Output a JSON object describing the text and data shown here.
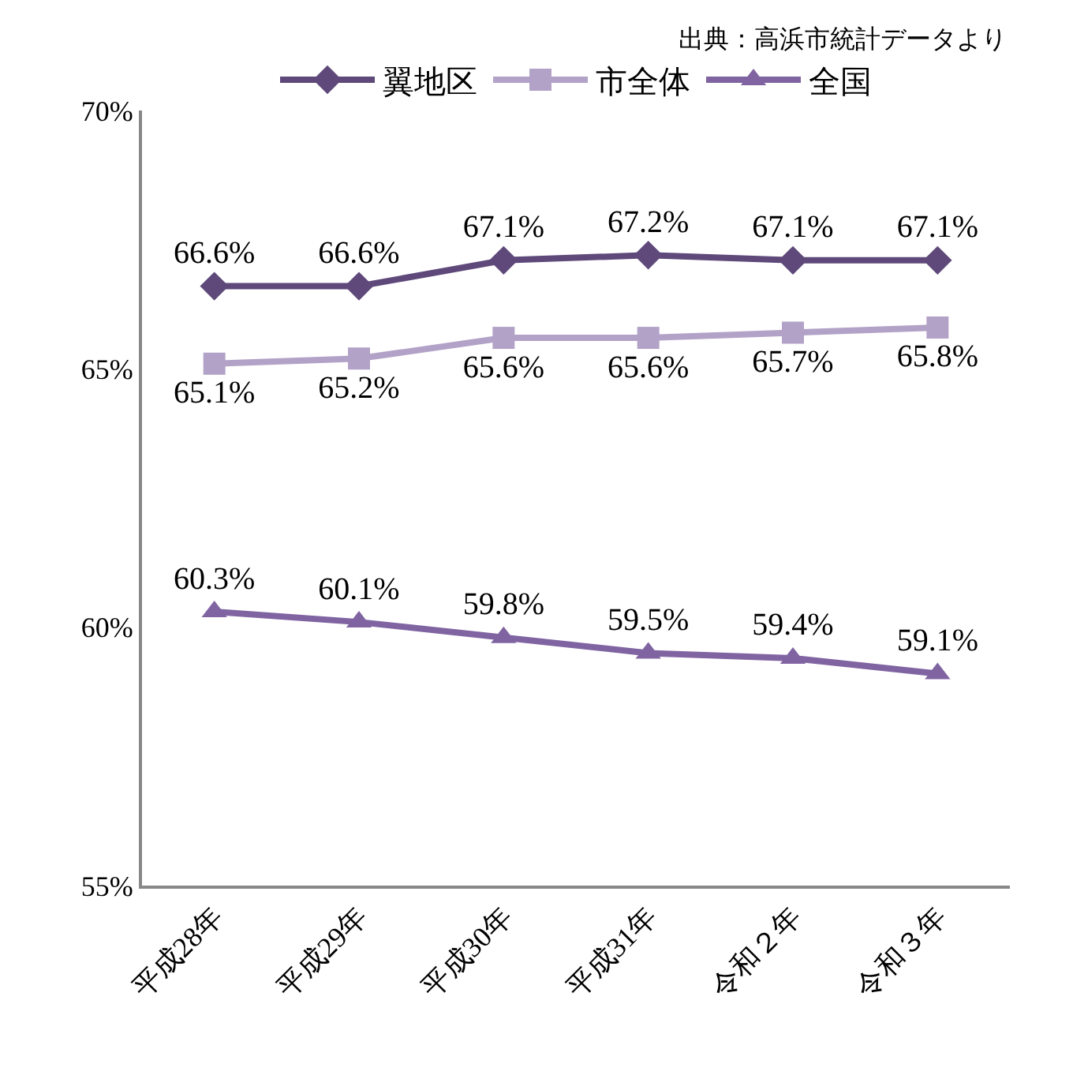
{
  "chart_data": {
    "type": "line",
    "categories": [
      "平成28年",
      "平成29年",
      "平成30年",
      "平成31年",
      "令和２年",
      "令和３年"
    ],
    "series": [
      {
        "name": "翼地区",
        "color": "#5f497a",
        "marker": "diamond",
        "values": [
          66.6,
          66.6,
          67.1,
          67.2,
          67.1,
          67.1
        ],
        "value_labels": [
          "66.6%",
          "66.6%",
          "67.1%",
          "67.2%",
          "67.1%",
          "67.1%"
        ]
      },
      {
        "name": "市全体",
        "color": "#b3a2c7",
        "marker": "square",
        "values": [
          65.1,
          65.2,
          65.6,
          65.6,
          65.7,
          65.8
        ],
        "value_labels": [
          "65.1%",
          "65.2%",
          "65.6%",
          "65.6%",
          "65.7%",
          "65.8%"
        ]
      },
      {
        "name": "全国",
        "color": "#8064a2",
        "marker": "triangle",
        "values": [
          60.3,
          60.1,
          59.8,
          59.5,
          59.4,
          59.1
        ],
        "value_labels": [
          "60.3%",
          "60.1%",
          "59.8%",
          "59.5%",
          "59.4%",
          "59.1%"
        ]
      }
    ],
    "ylim": [
      55,
      70
    ],
    "yticks": [
      {
        "value": 55,
        "label": "55%"
      },
      {
        "value": 60,
        "label": "60%"
      },
      {
        "value": 65,
        "label": "65%"
      },
      {
        "value": 70,
        "label": "70%"
      }
    ],
    "legend": "top",
    "annotations": [
      "出典：高浜市統計データより"
    ]
  }
}
